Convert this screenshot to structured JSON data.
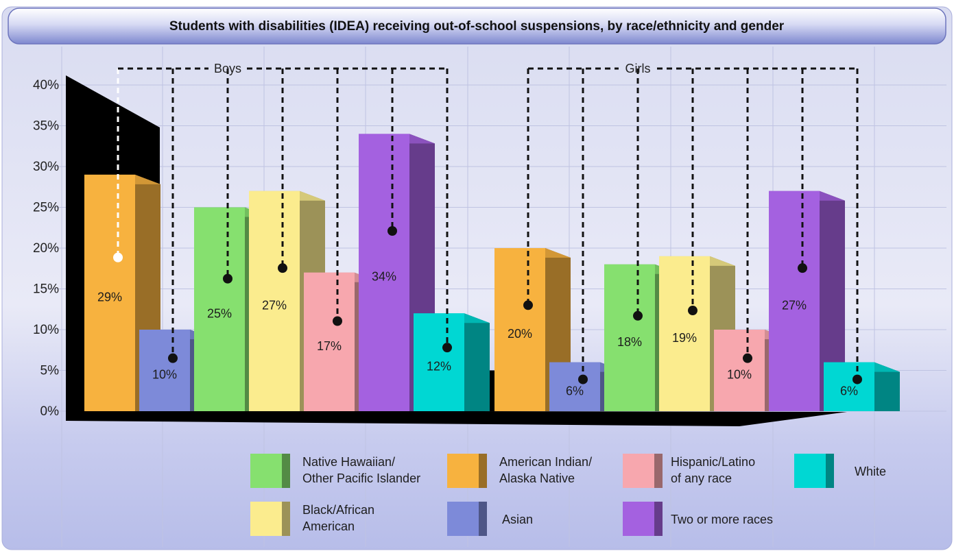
{
  "chart_data": {
    "type": "bar",
    "title": "Students with disabilities (IDEA) receiving out-of-school suspensions, by race/ethnicity and gender",
    "xlabel": "",
    "ylabel": "",
    "ylim": [
      0,
      40
    ],
    "yticks": [
      "0%",
      "5%",
      "10%",
      "15%",
      "20%",
      "25%",
      "30%",
      "35%",
      "40%"
    ],
    "grid": true,
    "legend_position": "bottom",
    "categories": [
      "American Indian/ Alaska Native",
      "Asian",
      "Native Hawaiian/ Other Pacific Islander",
      "Black/African American",
      "Hispanic/Latino of any race",
      "Two or more races",
      "White"
    ],
    "colors": [
      "#F7B23F",
      "#7D8AD9",
      "#86E06F",
      "#FBEC8E",
      "#F7A7AE",
      "#A461E0",
      "#00D7D3"
    ],
    "groups": [
      {
        "name": "Boys",
        "values": [
          29,
          10,
          25,
          27,
          17,
          34,
          12
        ],
        "labels": [
          "29%",
          "10%",
          "25%",
          "27%",
          "17%",
          "34%",
          "12%"
        ]
      },
      {
        "name": "Girls",
        "values": [
          20,
          6,
          18,
          19,
          10,
          27,
          6
        ],
        "labels": [
          "20%",
          "6%",
          "18%",
          "19%",
          "10%",
          "27%",
          "6%"
        ]
      }
    ],
    "legend": [
      {
        "label_lines": [
          "Native Hawaiian/",
          "Other Pacific Islander"
        ],
        "category": 2
      },
      {
        "label_lines": [
          "American Indian/",
          "Alaska Native"
        ],
        "category": 0
      },
      {
        "label_lines": [
          "Hispanic/Latino",
          "of any race"
        ],
        "category": 4
      },
      {
        "label_lines": [
          "White"
        ],
        "category": 6
      },
      {
        "label_lines": [
          "Black/African",
          "American"
        ],
        "category": 3
      },
      {
        "label_lines": [
          "Asian"
        ],
        "category": 1
      },
      {
        "label_lines": [
          "Two or more races"
        ],
        "category": 5
      }
    ]
  }
}
